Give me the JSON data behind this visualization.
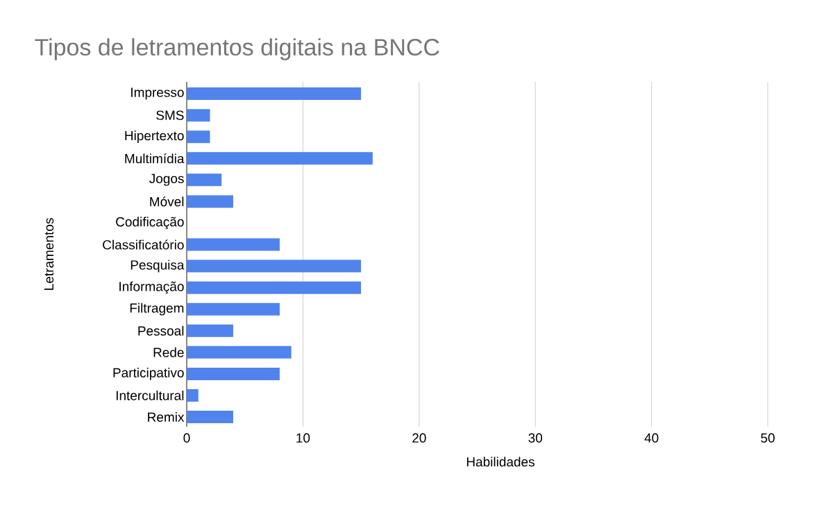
{
  "chart_data": {
    "type": "bar",
    "orientation": "horizontal",
    "title": "Tipos de letramentos digitais na BNCC",
    "xlabel": "Habilidades",
    "ylabel": "Letramentos",
    "categories": [
      "Impresso",
      "SMS",
      "Hipertexto",
      "Multimídia",
      "Jogos",
      "Móvel",
      "Codificação",
      "Classificatório",
      "Pesquisa",
      "Informação",
      "Filtragem",
      "Pessoal",
      "Rede",
      "Participativo",
      "Intercultural",
      "Remix"
    ],
    "values": [
      15,
      2,
      2,
      16,
      3,
      4,
      0,
      8,
      15,
      15,
      8,
      4,
      9,
      8,
      1,
      4
    ],
    "color": "#5083ec",
    "xlim": [
      0,
      50
    ],
    "xticks": [
      0,
      10,
      20,
      30,
      40,
      50
    ],
    "grid": "x"
  }
}
